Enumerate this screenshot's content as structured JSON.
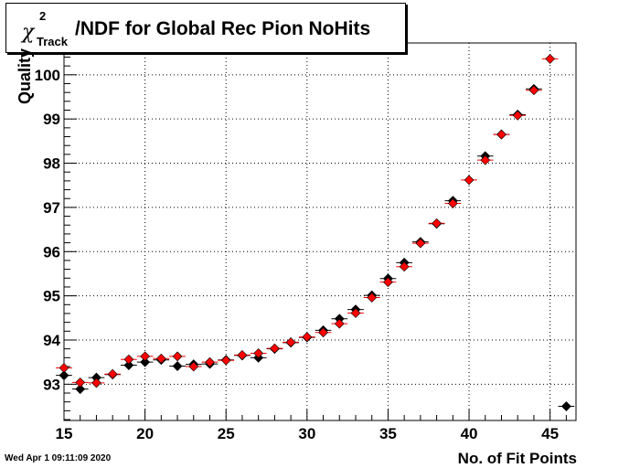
{
  "title": {
    "chi": "χ",
    "sup": "2",
    "sub": "Track",
    "main": "/NDF for Global Rec Pion NoHits"
  },
  "timestamp": "Wed Apr  1 09:11:09 2020",
  "colors": {
    "series1": "#000000",
    "series2": "#ff0000",
    "grid": "#000000",
    "frame": "#000000"
  },
  "chart_data": {
    "type": "scatter",
    "title": "χ²Track/NDF for Global Rec Pion NoHits",
    "xlabel": "No. of Fit Points",
    "ylabel": "Quality",
    "xlim": [
      15,
      46.6
    ],
    "ylim": [
      92.18,
      100.72
    ],
    "xticks": [
      15,
      20,
      25,
      30,
      35,
      40,
      45
    ],
    "yticks": [
      93,
      94,
      95,
      96,
      97,
      98,
      99,
      100
    ],
    "grid": true,
    "series": [
      {
        "color": "#000000",
        "x": [
          15,
          16,
          17,
          18,
          19,
          20,
          21,
          22,
          23,
          24,
          25,
          26,
          27,
          28,
          29,
          30,
          31,
          32,
          33,
          34,
          35,
          36,
          37,
          38,
          39,
          41,
          42,
          43,
          44,
          46
        ],
        "y": [
          93.2,
          92.89,
          93.15,
          93.22,
          93.43,
          93.5,
          93.55,
          93.41,
          93.45,
          93.46,
          93.55,
          93.65,
          93.6,
          93.8,
          93.94,
          94.06,
          94.22,
          94.48,
          94.69,
          95.01,
          95.39,
          95.75,
          96.22,
          96.63,
          97.15,
          98.16,
          98.65,
          99.1,
          99.68,
          92.5
        ]
      },
      {
        "color": "#ff0000",
        "x": [
          15,
          16,
          17,
          18,
          19,
          20,
          21,
          22,
          23,
          24,
          25,
          26,
          27,
          28,
          29,
          30,
          31,
          32,
          33,
          34,
          35,
          36,
          37,
          38,
          39,
          40,
          41,
          42,
          43,
          44,
          45
        ],
        "y": [
          93.37,
          93.04,
          93.03,
          93.23,
          93.56,
          93.63,
          93.58,
          93.63,
          93.4,
          93.5,
          93.54,
          93.66,
          93.7,
          93.81,
          93.95,
          94.07,
          94.17,
          94.37,
          94.61,
          94.96,
          95.31,
          95.66,
          96.19,
          96.64,
          97.09,
          97.62,
          98.07,
          98.65,
          99.08,
          99.65,
          100.36
        ]
      }
    ]
  }
}
